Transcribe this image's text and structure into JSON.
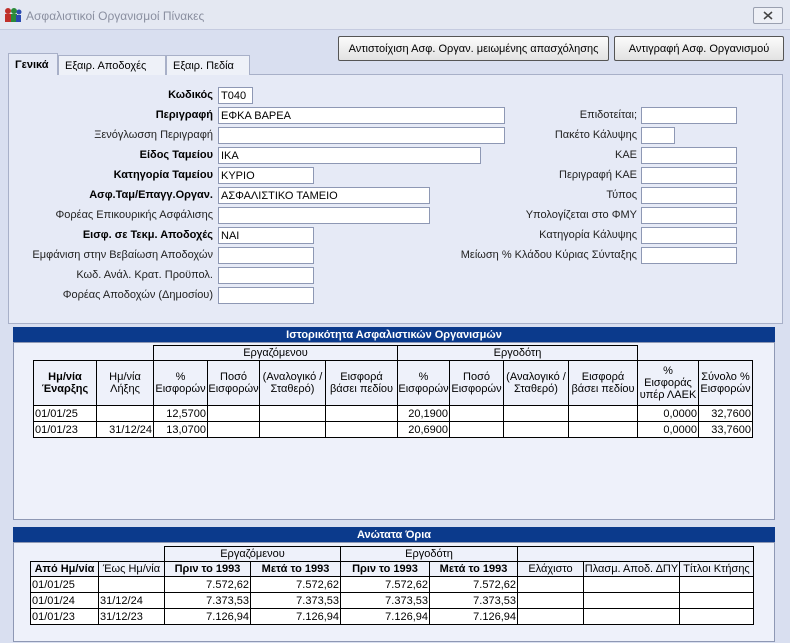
{
  "window": {
    "title": "Ασφαλιστικοί Οργανισμοί Πίνακες"
  },
  "buttons": [
    "Αντιστοίχιση Ασφ. Οργαν. μειωμένης απασχόλησης",
    "Αντιγραφή Ασφ. Οργανισμού"
  ],
  "tabs": [
    "Γενικά",
    "Εξαιρ. Αποδοχές",
    "Εξαιρ. Πεδία"
  ],
  "form": {
    "left": [
      {
        "label": "Κωδικός",
        "value": "Τ040"
      },
      {
        "label": "Περιγραφή",
        "value": "ΕΦΚΑ ΒΑΡΕΑ"
      },
      {
        "label": "Ξενόγλωσση Περιγραφή"
      },
      {
        "label": "Είδος Ταμείου",
        "value": "ΙΚΑ"
      },
      {
        "label": "Κατηγορία Ταμείου",
        "value": "ΚΥΡΙΟ"
      },
      {
        "label": "Ασφ.Ταμ/Επαγγ.Οργαν.",
        "value": "ΑΣΦΑΛΙΣΤΙΚΟ ΤΑΜΕΙΟ"
      },
      {
        "label": "Φορέας Επικουρικής Ασφάλισης"
      },
      {
        "label": "Εισφ. σε Τεκμ. Αποδοχές",
        "value": "ΝΑΙ"
      },
      {
        "label": "Εμφάνιση στην Βεβαίωση Αποδοχών"
      },
      {
        "label": "Κωδ. Ανάλ. Κρατ. Προϋπολ."
      },
      {
        "label": "Φορέας Αποδοχών (Δημοσίου)"
      }
    ],
    "right": [
      {
        "label": "Επιδοτείται;"
      },
      {
        "label": "Πακέτο Κάλυψης"
      },
      {
        "label": "ΚΑΕ"
      },
      {
        "label": "Περιγραφή ΚΑΕ"
      },
      {
        "label": "Τύπος"
      },
      {
        "label": "Υπολογίζεται στο ΦΜΥ"
      },
      {
        "label": "Κατηγορία Κάλυψης"
      },
      {
        "label": "Μείωση % Κλάδου Κύριας Σύνταξης"
      }
    ]
  },
  "history": {
    "title": "Ιστορικότητα Ασφαλιστικών Οργανισμών",
    "groups": [
      "Εργαζόμενου",
      "Εργοδότη"
    ],
    "columns": [
      "Ημ/νία Έναρξης",
      "Ημ/νία Λήξης",
      "% Εισφορών",
      "Ποσό Εισφορών",
      "(Αναλογικό / Σταθερό)",
      "Εισφορά βάσει πεδίου",
      "% Εισφορών",
      "Ποσό Εισφορών",
      "(Αναλογικό / Σταθερό)",
      "Εισφορά βάσει πεδίου",
      "% Εισφοράς υπέρ ΛΑΕΚ",
      "Σύνολο % Εισφορών"
    ],
    "rows": [
      [
        "01/01/25",
        null,
        "12,5700",
        null,
        null,
        null,
        "20,1900",
        null,
        null,
        null,
        "0,0000",
        "32,7600"
      ],
      [
        "01/01/23",
        "31/12/24",
        "13,0700",
        null,
        null,
        null,
        "20,6900",
        null,
        null,
        null,
        "0,0000",
        "33,7600"
      ]
    ]
  },
  "limits": {
    "title": "Ανώτατα Όρια",
    "groups": [
      "Εργαζόμενου",
      "Εργοδότη"
    ],
    "columns": [
      "Από Ημ/νία",
      "Έως Ημ/νία",
      "Πριν το 1993",
      "Μετά το 1993",
      "Πριν το 1993",
      "Μετά το 1993",
      "Ελάχιστο",
      "Πλασμ. Αποδ. ΔΠΥ",
      "Τίτλοι Κτήσης"
    ],
    "rows": [
      [
        "01/01/25",
        null,
        "7.572,62",
        "7.572,62",
        "7.572,62",
        "7.572,62",
        null,
        null,
        null
      ],
      [
        "01/01/24",
        "31/12/24",
        "7.373,53",
        "7.373,53",
        "7.373,53",
        "7.373,53",
        null,
        null,
        null
      ],
      [
        "01/01/23",
        "31/12/23",
        "7.126,94",
        "7.126,94",
        "7.126,94",
        "7.126,94",
        null,
        null,
        null
      ]
    ]
  }
}
